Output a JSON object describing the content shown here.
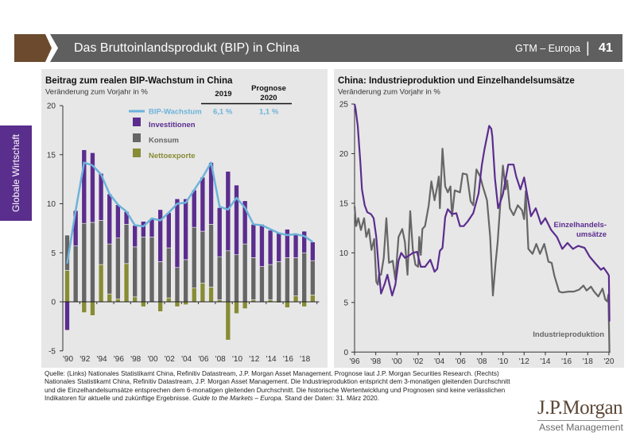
{
  "header": {
    "title": "Das Bruttoinlandsprodukt (BIP) in China",
    "series_label": "GTM – Europa",
    "separator": "|",
    "page_number": "41"
  },
  "sidebar": {
    "section_label": "Globale Wirtschaft"
  },
  "colors": {
    "header_gray": "#5f5f5f",
    "brand_brown": "#6b4a2e",
    "sidebar_purple": "#5a2e8c",
    "panel_bg": "#e7e7e7"
  },
  "chart_data": [
    {
      "type": "bar",
      "stacked": true,
      "title": "Beitrag zum realen BIP-Wachstum in China",
      "subtitle": "Veränderung zum Vorjahr in %",
      "xlabel": "",
      "ylabel": "Veränderung zum Vorjahr in %",
      "ylim": [
        -5,
        20
      ],
      "yticks": [
        20,
        15,
        10,
        5,
        0,
        -5
      ],
      "grid": false,
      "legend_position": "top-center",
      "categories": [
        "'90",
        "'91",
        "'92",
        "'93",
        "'94",
        "'95",
        "'96",
        "'97",
        "'98",
        "'99",
        "'00",
        "'01",
        "'02",
        "'03",
        "'04",
        "'05",
        "'06",
        "'07",
        "'08",
        "'09",
        "'10",
        "'11",
        "'12",
        "'13",
        "'14",
        "'15",
        "'16",
        "'17",
        "'18",
        "'19"
      ],
      "xtick_labels": [
        "'90",
        "'92",
        "'94",
        "'96",
        "'98",
        "'00",
        "'02",
        "'04",
        "'06",
        "'08",
        "'10",
        "'12",
        "'14",
        "'16",
        "'18"
      ],
      "series": [
        {
          "name": "Investitionen",
          "type": "bar",
          "color": "#5b2d8e",
          "values": [
            -2.9,
            3.6,
            7.5,
            7.1,
            4.8,
            5.1,
            3.4,
            1.3,
            2.2,
            1.6,
            1.9,
            5.3,
            3.6,
            7.0,
            6.2,
            3.8,
            5.5,
            6.3,
            5.0,
            8.1,
            7.1,
            4.4,
            3.4,
            4.3,
            3.5,
            2.9,
            2.9,
            2.4,
            2.2,
            1.9
          ]
        },
        {
          "name": "Konsum",
          "type": "bar",
          "color": "#666666",
          "values": [
            3.6,
            5.7,
            8.0,
            8.1,
            4.5,
            5.1,
            6.2,
            4.0,
            5.1,
            6.6,
            6.6,
            4.1,
            5.1,
            3.5,
            4.3,
            6.2,
            5.3,
            6.4,
            4.4,
            5.2,
            4.8,
            5.9,
            4.3,
            3.6,
            3.6,
            4.1,
            4.5,
            3.9,
            5.0,
            3.5
          ]
        },
        {
          "name": "Nettoexporte",
          "type": "bar",
          "color": "#878c35",
          "values": [
            3.2,
            0,
            -1.1,
            -1.4,
            3.8,
            0.8,
            0.3,
            3.9,
            0.5,
            -0.5,
            0,
            -1.0,
            0.4,
            -0.5,
            -0.3,
            1.4,
            1.9,
            1.5,
            0.2,
            -3.9,
            -1.2,
            -0.7,
            0.2,
            0,
            0.2,
            -0.1,
            -0.6,
            0.6,
            -0.5,
            0.7
          ]
        },
        {
          "name": "BIP-Wachstum",
          "type": "line",
          "color": "#6db3da",
          "values": [
            3.9,
            9.3,
            14.2,
            13.9,
            13.0,
            11.0,
            9.9,
            9.2,
            7.8,
            7.7,
            8.5,
            8.3,
            9.1,
            10.0,
            10.1,
            11.4,
            12.7,
            14.2,
            9.7,
            9.4,
            10.6,
            9.6,
            7.9,
            7.8,
            7.4,
            7.0,
            6.8,
            6.9,
            6.7,
            6.1
          ]
        }
      ],
      "forecast_table": {
        "col_actual": "2019",
        "col_forecast_line1": "Prognose",
        "col_forecast_line2": "2020",
        "row_label": "BIP-Wachstum",
        "value_actual": "6,1 %",
        "value_forecast": "1,1 %"
      }
    },
    {
      "type": "line",
      "title": "China: Industrieproduktion und Einzelhandelsumsätze",
      "subtitle": "Veränderung zum Vorjahr in %",
      "xlabel": "",
      "ylabel": "Veränderung zum Vorjahr in %",
      "xlim": [
        1996,
        2020
      ],
      "ylim": [
        0,
        25
      ],
      "yticks": [
        25,
        20,
        15,
        10,
        5,
        0
      ],
      "grid": false,
      "xtick_values": [
        1996,
        1998,
        2000,
        2002,
        2004,
        2006,
        2008,
        2010,
        2012,
        2014,
        2016,
        2018,
        2020
      ],
      "xtick_labels": [
        "'96",
        "'98",
        "'00",
        "'02",
        "'04",
        "'06",
        "'08",
        "'10",
        "'12",
        "'14",
        "'16",
        "'18",
        "'20"
      ],
      "series": [
        {
          "name": "Einzelhandelsumsätze",
          "label_line1": "Einzelhandels-",
          "label_line2": "umsätze",
          "color": "#5b2d8e",
          "points": [
            [
              1996.0,
              25.0
            ],
            [
              1996.1,
              24.5
            ],
            [
              1996.3,
              22.8
            ],
            [
              1996.55,
              19.1
            ],
            [
              1996.7,
              16.4
            ],
            [
              1996.95,
              14.8
            ],
            [
              1997.2,
              14.1
            ],
            [
              1997.55,
              13.9
            ],
            [
              1997.8,
              13.5
            ],
            [
              1998.05,
              11.6
            ],
            [
              1998.3,
              8.1
            ],
            [
              1998.5,
              5.9
            ],
            [
              1998.85,
              6.9
            ],
            [
              1999.1,
              7.8
            ],
            [
              1999.3,
              6.8
            ],
            [
              1999.55,
              5.7
            ],
            [
              1999.85,
              6.8
            ],
            [
              2000.15,
              9.2
            ],
            [
              2000.4,
              10.0
            ],
            [
              2000.75,
              9.5
            ],
            [
              2001.1,
              9.7
            ],
            [
              2001.5,
              10.0
            ],
            [
              2001.9,
              10.1
            ],
            [
              2002.25,
              8.6
            ],
            [
              2002.65,
              8.6
            ],
            [
              2003.15,
              9.3
            ],
            [
              2003.55,
              8.1
            ],
            [
              2003.8,
              8.4
            ],
            [
              2004.05,
              10.2
            ],
            [
              2004.3,
              10.5
            ],
            [
              2004.55,
              13.6
            ],
            [
              2004.8,
              14.4
            ],
            [
              2005.2,
              13.9
            ],
            [
              2005.6,
              14.0
            ],
            [
              2005.95,
              12.7
            ],
            [
              2006.3,
              12.7
            ],
            [
              2006.7,
              13.2
            ],
            [
              2007.2,
              14.0
            ],
            [
              2007.7,
              16.0
            ],
            [
              2008.0,
              18.8
            ],
            [
              2008.25,
              20.4
            ],
            [
              2008.7,
              22.8
            ],
            [
              2008.9,
              22.5
            ],
            [
              2009.0,
              21.7
            ],
            [
              2009.25,
              17.5
            ],
            [
              2009.55,
              14.5
            ],
            [
              2010.0,
              15.9
            ],
            [
              2010.5,
              18.9
            ],
            [
              2011.0,
              18.9
            ],
            [
              2011.25,
              17.7
            ],
            [
              2011.65,
              16.4
            ],
            [
              2012.0,
              17.6
            ],
            [
              2012.65,
              13.7
            ],
            [
              2013.1,
              14.5
            ],
            [
              2013.6,
              12.9
            ],
            [
              2014.0,
              13.5
            ],
            [
              2014.55,
              12.3
            ],
            [
              2015.1,
              11.6
            ],
            [
              2015.6,
              10.4
            ],
            [
              2016.1,
              11.0
            ],
            [
              2016.6,
              10.4
            ],
            [
              2017.1,
              10.7
            ],
            [
              2017.7,
              10.5
            ],
            [
              2018.2,
              9.6
            ],
            [
              2018.75,
              8.9
            ],
            [
              2019.25,
              8.3
            ],
            [
              2019.5,
              8.5
            ],
            [
              2019.9,
              7.9
            ],
            [
              2020.0,
              7.7
            ],
            [
              2020.05,
              3.1
            ]
          ]
        },
        {
          "name": "Industrieproduktion",
          "label_line1": "Industrieproduktion",
          "label_line2": "",
          "color": "#666666",
          "points": [
            [
              1996.0,
              14.7
            ],
            [
              1996.15,
              12.7
            ],
            [
              1996.35,
              13.5
            ],
            [
              1996.6,
              12.3
            ],
            [
              1996.9,
              13.5
            ],
            [
              1997.1,
              11.6
            ],
            [
              1997.35,
              12.4
            ],
            [
              1997.6,
              10.3
            ],
            [
              1997.85,
              11.4
            ],
            [
              1998.05,
              7.1
            ],
            [
              1998.2,
              6.8
            ],
            [
              1998.3,
              7.8
            ],
            [
              1998.5,
              7.8
            ],
            [
              1998.75,
              9.5
            ],
            [
              1999.0,
              13.5
            ],
            [
              1999.25,
              9.0
            ],
            [
              1999.6,
              9.2
            ],
            [
              1999.85,
              7.3
            ],
            [
              2000.15,
              11.6
            ],
            [
              2000.5,
              12.4
            ],
            [
              2000.75,
              11.1
            ],
            [
              2001.0,
              7.8
            ],
            [
              2001.25,
              14.2
            ],
            [
              2001.5,
              10.3
            ],
            [
              2001.75,
              8.8
            ],
            [
              2002.0,
              8.6
            ],
            [
              2002.1,
              11.6
            ],
            [
              2002.25,
              9.8
            ],
            [
              2002.4,
              12.4
            ],
            [
              2002.65,
              12.7
            ],
            [
              2003.0,
              14.8
            ],
            [
              2003.25,
              17.2
            ],
            [
              2003.55,
              15.3
            ],
            [
              2003.8,
              16.7
            ],
            [
              2003.95,
              17.7
            ],
            [
              2004.05,
              14.5
            ],
            [
              2004.3,
              20.5
            ],
            [
              2004.55,
              16.7
            ],
            [
              2004.8,
              16.1
            ],
            [
              2005.05,
              16.7
            ],
            [
              2005.2,
              13.7
            ],
            [
              2005.45,
              16.3
            ],
            [
              2005.95,
              16.1
            ],
            [
              2006.2,
              18.0
            ],
            [
              2006.6,
              17.9
            ],
            [
              2006.95,
              15.2
            ],
            [
              2007.2,
              14.8
            ],
            [
              2007.5,
              18.4
            ],
            [
              2007.85,
              17.7
            ],
            [
              2008.1,
              16.7
            ],
            [
              2008.5,
              15.3
            ],
            [
              2008.8,
              11.6
            ],
            [
              2009.05,
              5.7
            ],
            [
              2009.3,
              8.9
            ],
            [
              2009.5,
              11.1
            ],
            [
              2010.0,
              18.8
            ],
            [
              2010.25,
              16.4
            ],
            [
              2010.4,
              17.3
            ],
            [
              2010.65,
              14.5
            ],
            [
              2011.0,
              13.8
            ],
            [
              2011.4,
              14.8
            ],
            [
              2011.8,
              14.3
            ],
            [
              2012.0,
              13.4
            ],
            [
              2012.15,
              16.2
            ],
            [
              2012.4,
              10.4
            ],
            [
              2012.8,
              9.9
            ],
            [
              2013.15,
              10.9
            ],
            [
              2013.5,
              9.9
            ],
            [
              2013.9,
              10.9
            ],
            [
              2014.3,
              9.1
            ],
            [
              2014.6,
              9.0
            ],
            [
              2014.85,
              7.7
            ],
            [
              2015.3,
              6.1
            ],
            [
              2015.6,
              6.0
            ],
            [
              2016.2,
              6.1
            ],
            [
              2016.7,
              6.1
            ],
            [
              2017.2,
              6.3
            ],
            [
              2017.6,
              6.7
            ],
            [
              2017.9,
              6.2
            ],
            [
              2018.3,
              6.6
            ],
            [
              2018.6,
              6.1
            ],
            [
              2019.0,
              5.6
            ],
            [
              2019.4,
              6.4
            ],
            [
              2019.65,
              5.3
            ],
            [
              2019.85,
              5.1
            ],
            [
              2019.95,
              5.8
            ],
            [
              2020.05,
              0.0
            ]
          ]
        }
      ]
    }
  ],
  "footer": {
    "line1": "Quelle: (Links) Nationales Statistikamt China, Refinitiv Datastream, J.P. Morgan Asset Management. Prognose laut J.P. Morgan Securities Research. (Rechts)",
    "line2": "Nationales Statistikamt China, Refinitiv Datastream, J.P. Morgan Asset Management. Die Industrieproduktion entspricht dem 3-monatigen gleitenden Durchschnitt",
    "line3": "und die Einzelhandelsumsätze entsprechen dem 6-monatigen gleitenden Durchschnitt. Die historische Wertentwicklung und Prognosen sind keine verlässlichen",
    "line4_start": "Indikatoren für aktuelle und zukünftige Ergebnisse. ",
    "line4_italic": "Guide to the Markets – Europa",
    "line4_end": ". Stand der Daten: 31. März 2020."
  },
  "logo": {
    "name": "J.P.Morgan",
    "subtitle": "Asset Management"
  }
}
